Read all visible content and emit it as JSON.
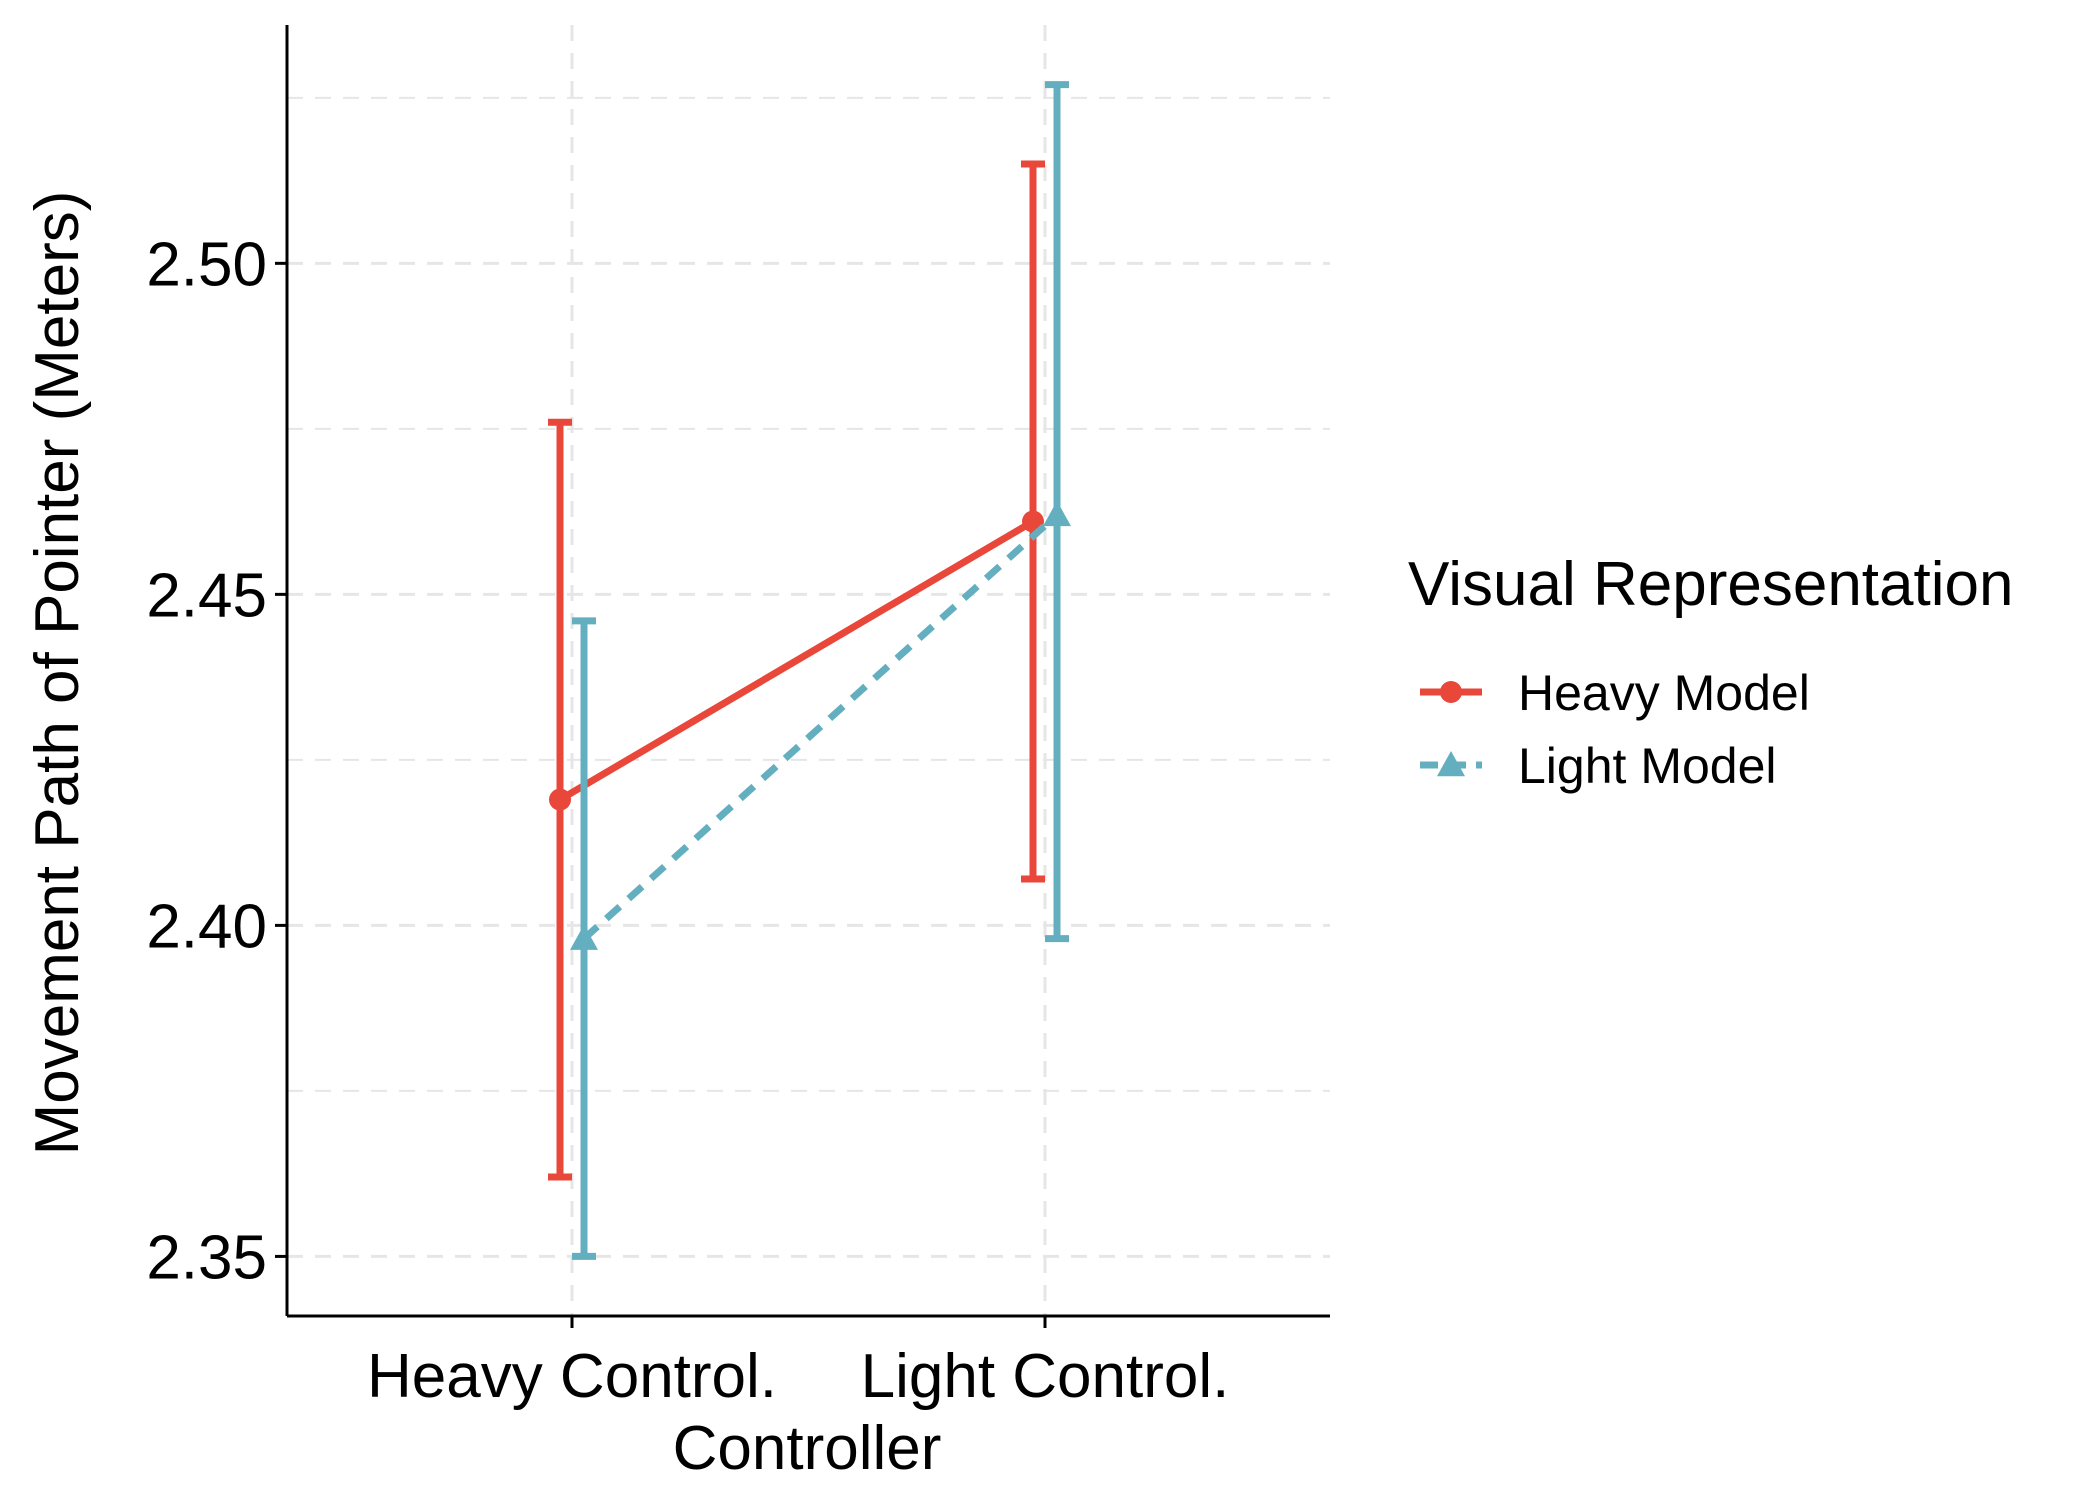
{
  "colors": {
    "heavy_model": "#E8473A",
    "light_model": "#64AFBF",
    "axis": "#000000",
    "grid": "#E6E6E6",
    "background": "#FFFFFF"
  },
  "chart_data": {
    "type": "line",
    "title": "",
    "xlabel": "Controller",
    "ylabel": "Movement Path of Pointer (Meters)",
    "categories": [
      "Heavy Control.",
      "Light Control."
    ],
    "ylim": [
      2.341,
      2.536
    ],
    "yticks": [
      2.35,
      2.4,
      2.45,
      2.5
    ],
    "ytick_labels": [
      "2.35",
      "2.40",
      "2.45",
      "2.50"
    ],
    "grid": true,
    "grid_style": "dashed",
    "error_bars": true,
    "legend": {
      "title": "Visual Representation",
      "position": "right"
    },
    "series": [
      {
        "name": "Heavy Model",
        "marker": "circle",
        "line": "solid",
        "color_key": "heavy_model",
        "values": [
          2.419,
          2.461
        ],
        "lower": [
          2.362,
          2.407
        ],
        "upper": [
          2.476,
          2.515
        ]
      },
      {
        "name": "Light Model",
        "marker": "triangle",
        "line": "dashed",
        "color_key": "light_model",
        "values": [
          2.398,
          2.462
        ],
        "lower": [
          2.35,
          2.398
        ],
        "upper": [
          2.446,
          2.527
        ]
      }
    ]
  }
}
